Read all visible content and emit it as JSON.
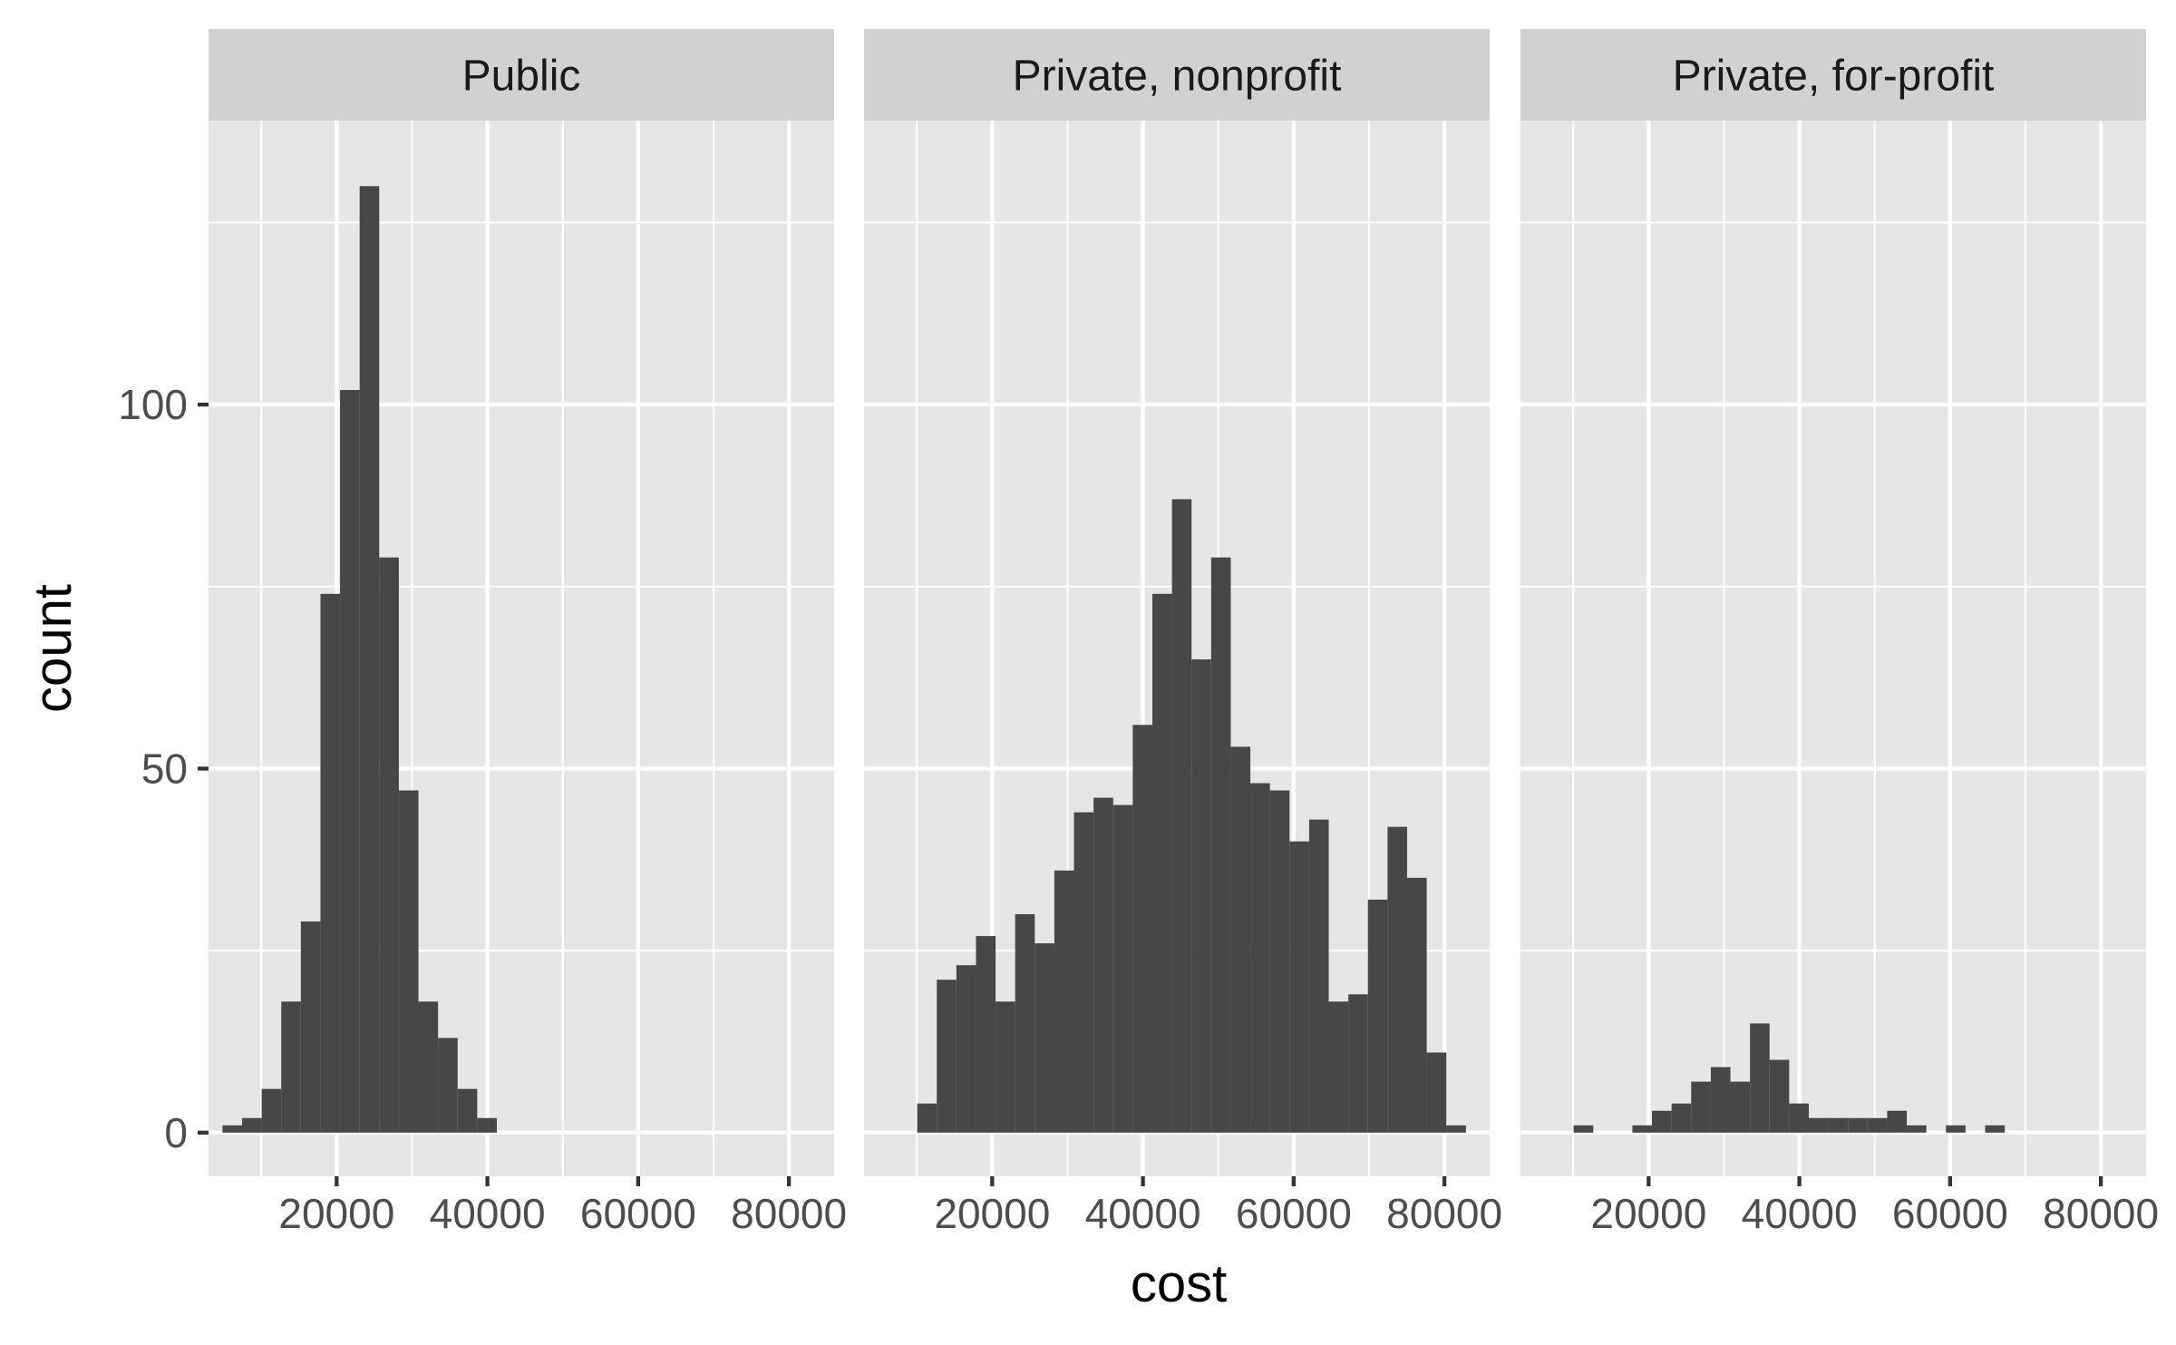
{
  "chart_data": {
    "type": "bar",
    "subtype": "histogram",
    "facet_by": "control",
    "xlabel": "cost",
    "ylabel": "count",
    "xlim": [
      3000,
      86000
    ],
    "ylim": [
      -6,
      139
    ],
    "x_ticks": [
      20000,
      40000,
      60000,
      80000
    ],
    "y_ticks": [
      0,
      50,
      100
    ],
    "bin_width": 2600,
    "grid": true,
    "legend": "none",
    "colors": {
      "bar": "#474747",
      "panel": "#e6e6e6",
      "strip": "#d1d1d1",
      "grid": "#ffffff"
    },
    "panels": [
      {
        "name": "Public",
        "bin_centers": [
          6150,
          8750,
          11350,
          13950,
          16550,
          19150,
          21750,
          24350,
          26950,
          29550,
          32150,
          34750,
          37350,
          39950
        ],
        "counts": [
          1,
          2,
          6,
          18,
          29,
          74,
          102,
          130,
          79,
          47,
          18,
          13,
          6,
          2
        ]
      },
      {
        "name": "Private, nonprofit",
        "bin_centers": [
          11350,
          13950,
          16550,
          19150,
          21750,
          24350,
          26950,
          29550,
          32150,
          34750,
          37350,
          39950,
          42550,
          45150,
          47750,
          50350,
          52950,
          55550,
          58150,
          60750,
          63350,
          65950,
          68550,
          71150,
          73750,
          76350,
          78950,
          81550
        ],
        "counts": [
          4,
          21,
          23,
          27,
          18,
          30,
          26,
          36,
          44,
          46,
          45,
          56,
          74,
          87,
          65,
          79,
          53,
          48,
          47,
          40,
          43,
          18,
          19,
          32,
          42,
          35,
          11,
          1
        ]
      },
      {
        "name": "Private, for-profit",
        "bin_centers": [
          11350,
          13950,
          16550,
          19150,
          21750,
          24350,
          26950,
          29550,
          32150,
          34750,
          37350,
          39950,
          42550,
          45150,
          47750,
          50350,
          52950,
          55550,
          58150,
          60750,
          63350,
          65950
        ],
        "counts": [
          1,
          0,
          0,
          1,
          3,
          4,
          7,
          9,
          7,
          15,
          10,
          4,
          2,
          2,
          2,
          2,
          3,
          1,
          0,
          1,
          0,
          1
        ]
      }
    ]
  }
}
